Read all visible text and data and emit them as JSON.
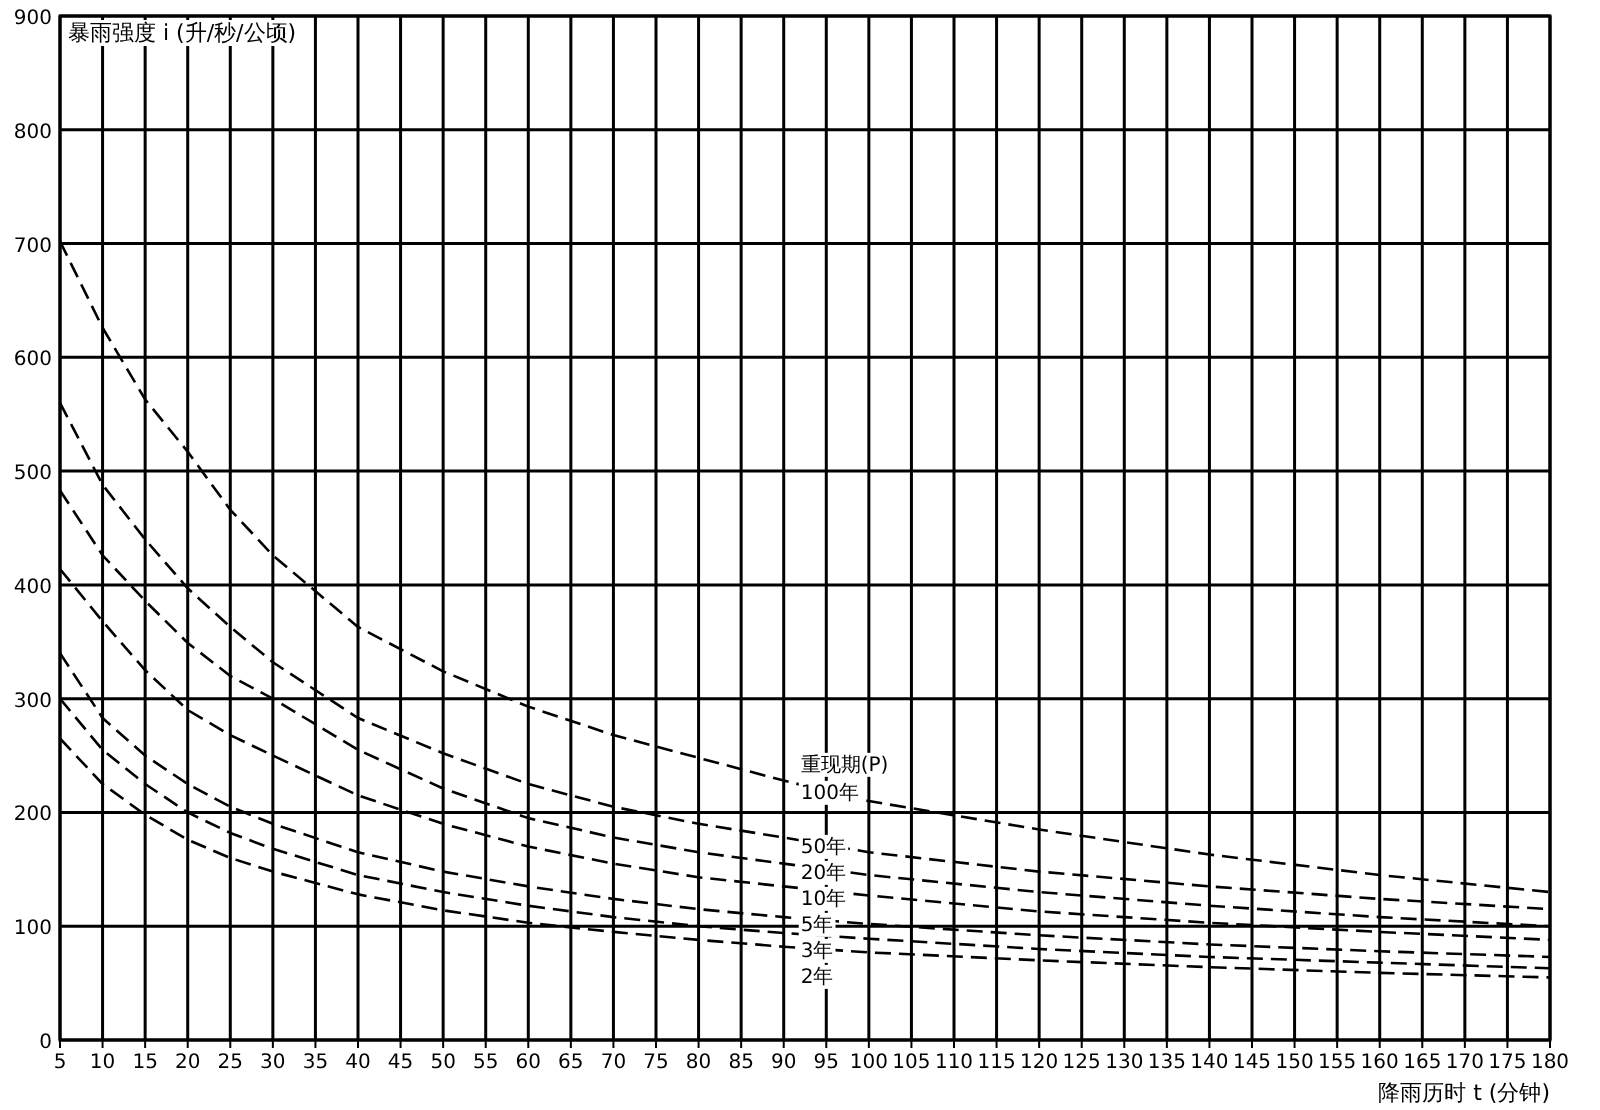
{
  "chart_data": {
    "type": "line",
    "ylabel": "暴雨强度 i (升/秒/公顷)",
    "xlabel": "降雨历时 t (分钟)",
    "legend_title": "重现期(P)",
    "x": [
      5,
      10,
      15,
      20,
      25,
      30,
      40,
      50,
      60,
      70,
      80,
      90,
      100,
      120,
      140,
      160,
      180
    ],
    "series": [
      {
        "name": "100年",
        "color": "#000000",
        "values": [
          702,
          626,
          563,
          517,
          466,
          426,
          363,
          324,
          293,
          268,
          248,
          228,
          210,
          185,
          163,
          145,
          130
        ]
      },
      {
        "name": "50年",
        "color": "#000000",
        "values": [
          560,
          488,
          440,
          397,
          363,
          332,
          283,
          252,
          225,
          205,
          190,
          178,
          165,
          148,
          135,
          124,
          115
        ]
      },
      {
        "name": "20年",
        "color": "#000000",
        "values": [
          483,
          426,
          386,
          349,
          320,
          300,
          255,
          221,
          195,
          178,
          165,
          155,
          145,
          130,
          118,
          108,
          100
        ]
      },
      {
        "name": "10年",
        "color": "#000000",
        "values": [
          414,
          368,
          325,
          290,
          268,
          250,
          215,
          190,
          170,
          155,
          143,
          135,
          127,
          113,
          103,
          95,
          88
        ]
      },
      {
        "name": "5年",
        "color": "#000000",
        "values": [
          340,
          283,
          250,
          225,
          205,
          190,
          165,
          148,
          135,
          124,
          115,
          108,
          102,
          92,
          84,
          78,
          73
        ]
      },
      {
        "name": "3年",
        "color": "#000000",
        "values": [
          300,
          255,
          225,
          200,
          182,
          168,
          145,
          130,
          118,
          108,
          100,
          94,
          89,
          80,
          73,
          68,
          63
        ]
      },
      {
        "name": "2年",
        "color": "#000000",
        "values": [
          265,
          225,
          198,
          176,
          160,
          148,
          128,
          114,
          103,
          95,
          88,
          82,
          77,
          70,
          64,
          59,
          55
        ]
      }
    ],
    "xlim": [
      5,
      180
    ],
    "ylim": [
      0,
      900
    ],
    "xticks": [
      5,
      10,
      15,
      20,
      25,
      30,
      35,
      40,
      45,
      50,
      55,
      60,
      65,
      70,
      75,
      80,
      85,
      90,
      95,
      100,
      105,
      110,
      115,
      120,
      125,
      130,
      135,
      140,
      145,
      150,
      155,
      160,
      165,
      170,
      175,
      180
    ],
    "yticks": [
      0,
      100,
      200,
      300,
      400,
      500,
      600,
      700,
      800,
      900
    ],
    "grid": true,
    "line_style": "dashed",
    "marker": "none"
  }
}
